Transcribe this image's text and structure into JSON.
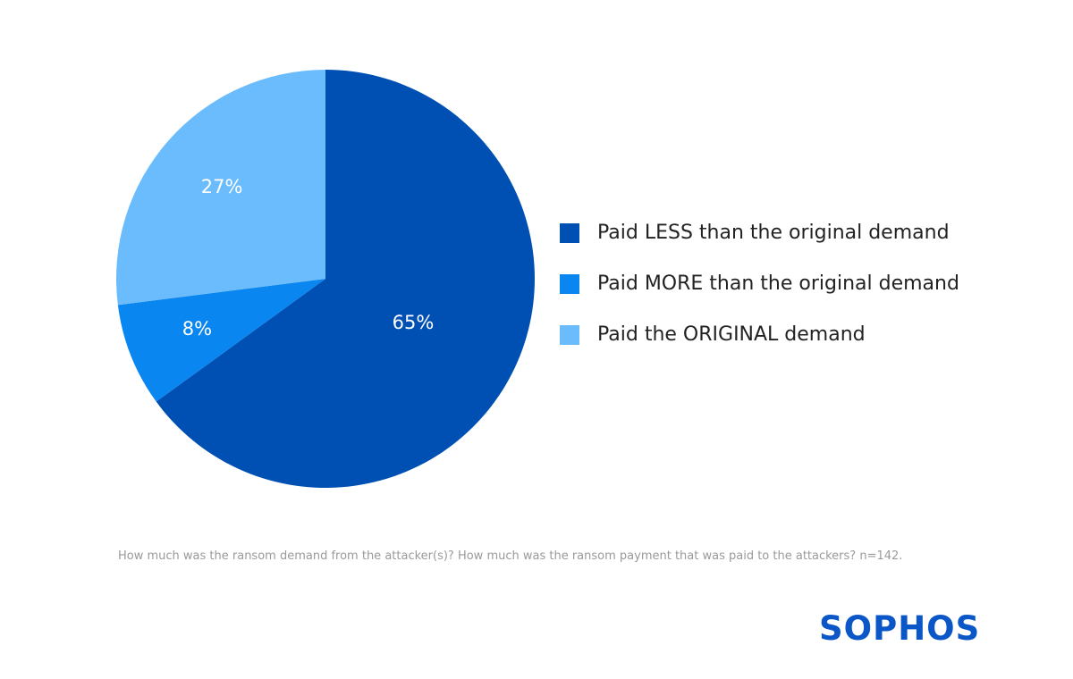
{
  "chart_data": {
    "type": "pie",
    "categories": [
      "Paid LESS than the original demand",
      "Paid MORE than the original demand",
      "Paid the ORIGINAL demand"
    ],
    "values": [
      65,
      8,
      27
    ],
    "data_labels": [
      "65%",
      "8%",
      "27%"
    ],
    "colors": [
      "#0050b4",
      "#0a86f0",
      "#6bbcfc"
    ],
    "legend_position": "right"
  },
  "footnote": "How much was the ransom demand from the attacker(s)? How much was the ransom payment that was paid to the attackers? n=142.",
  "brand": {
    "logo_text": "SOPHOS",
    "color": "#0b57c7"
  }
}
